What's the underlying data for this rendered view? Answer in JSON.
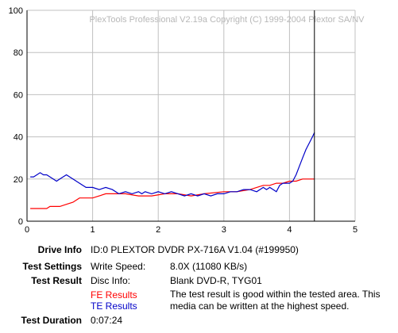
{
  "chart_data": {
    "type": "line",
    "title": "PlexTools Professional V2.19a Copyright (C) 1999-2004 Plextor SA/NV",
    "xlim": [
      0,
      5
    ],
    "ylim": [
      0,
      100
    ],
    "x_ticks": [
      "0",
      "1",
      "2",
      "3",
      "4",
      "5"
    ],
    "y_ticks": [
      "0",
      "20",
      "40",
      "60",
      "80",
      "100"
    ],
    "grid": true,
    "cursor_x": 4.38,
    "series": [
      {
        "name": "FE Results",
        "color": "#ff0000",
        "points": [
          [
            0.05,
            6
          ],
          [
            0.3,
            6
          ],
          [
            0.35,
            7
          ],
          [
            0.5,
            7
          ],
          [
            0.6,
            8
          ],
          [
            0.7,
            9
          ],
          [
            0.8,
            11
          ],
          [
            1.0,
            11
          ],
          [
            1.1,
            12
          ],
          [
            1.2,
            13
          ],
          [
            1.5,
            13
          ],
          [
            1.7,
            12
          ],
          [
            1.9,
            12
          ],
          [
            2.1,
            13
          ],
          [
            2.3,
            13
          ],
          [
            2.5,
            12
          ],
          [
            2.7,
            13
          ],
          [
            3.0,
            14
          ],
          [
            3.2,
            14
          ],
          [
            3.4,
            15
          ],
          [
            3.5,
            16
          ],
          [
            3.6,
            17
          ],
          [
            3.7,
            17
          ],
          [
            3.8,
            18
          ],
          [
            3.9,
            18
          ],
          [
            4.0,
            19
          ],
          [
            4.1,
            19
          ],
          [
            4.2,
            20
          ],
          [
            4.3,
            20
          ],
          [
            4.38,
            20
          ]
        ]
      },
      {
        "name": "TE Results",
        "color": "#0000c8",
        "points": [
          [
            0.05,
            21
          ],
          [
            0.1,
            21
          ],
          [
            0.15,
            22
          ],
          [
            0.2,
            23
          ],
          [
            0.25,
            22
          ],
          [
            0.3,
            22
          ],
          [
            0.35,
            21
          ],
          [
            0.4,
            20
          ],
          [
            0.45,
            19
          ],
          [
            0.5,
            20
          ],
          [
            0.55,
            21
          ],
          [
            0.6,
            22
          ],
          [
            0.65,
            21
          ],
          [
            0.7,
            20
          ],
          [
            0.8,
            18
          ],
          [
            0.9,
            16
          ],
          [
            1.0,
            16
          ],
          [
            1.1,
            15
          ],
          [
            1.2,
            16
          ],
          [
            1.3,
            15
          ],
          [
            1.4,
            13
          ],
          [
            1.5,
            14
          ],
          [
            1.6,
            13
          ],
          [
            1.7,
            14
          ],
          [
            1.75,
            13
          ],
          [
            1.8,
            14
          ],
          [
            1.9,
            13
          ],
          [
            2.0,
            14
          ],
          [
            2.1,
            13
          ],
          [
            2.2,
            14
          ],
          [
            2.3,
            13
          ],
          [
            2.4,
            12
          ],
          [
            2.5,
            13
          ],
          [
            2.6,
            12
          ],
          [
            2.7,
            13
          ],
          [
            2.8,
            12
          ],
          [
            2.9,
            13
          ],
          [
            3.0,
            13
          ],
          [
            3.1,
            14
          ],
          [
            3.2,
            14
          ],
          [
            3.3,
            15
          ],
          [
            3.4,
            15
          ],
          [
            3.5,
            14
          ],
          [
            3.6,
            16
          ],
          [
            3.65,
            15
          ],
          [
            3.7,
            16
          ],
          [
            3.8,
            14
          ],
          [
            3.85,
            17
          ],
          [
            3.9,
            18
          ],
          [
            4.0,
            18
          ],
          [
            4.05,
            19
          ],
          [
            4.1,
            22
          ],
          [
            4.15,
            26
          ],
          [
            4.2,
            30
          ],
          [
            4.25,
            34
          ],
          [
            4.3,
            37
          ],
          [
            4.35,
            40
          ],
          [
            4.38,
            42
          ]
        ]
      }
    ]
  },
  "info": {
    "drive_label": "Drive Info",
    "drive_value": "ID:0 PLEXTOR DVDR PX-716A V1.04 (#199950)",
    "settings_label": "Test Settings",
    "write_speed_label": "Write Speed:",
    "write_speed_value": "8.0X (11080 KB/s)",
    "result_label": "Test Result",
    "disc_info_label": "Disc Info:",
    "disc_info_value": "Blank DVD-R, TYG01",
    "fe_label": "FE Results",
    "te_label": "TE Results",
    "result_text": "The test result is good within the tested area. This media can be written at the highest speed.",
    "duration_label": "Test Duration",
    "duration_value": "0:07:24"
  },
  "colors": {
    "grid": "#c0c0c0",
    "axis": "#000000",
    "cursor": "#000000"
  }
}
